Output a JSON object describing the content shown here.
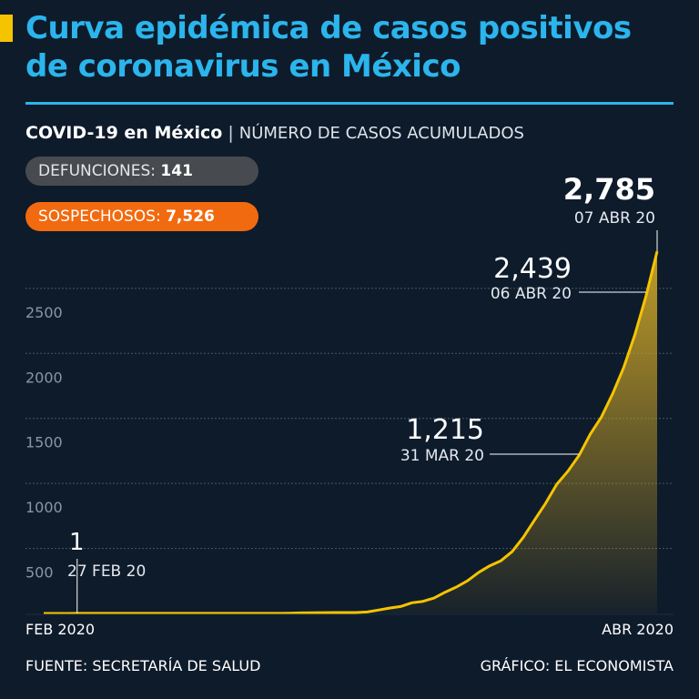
{
  "title": "Curva epidémica de casos positivos de coronavirus en México",
  "subtitle": {
    "strong": "COVID-19 en México",
    "separator": "|",
    "light": "NÚMERO DE CASOS ACUMULADOS"
  },
  "pills": {
    "defunciones_label": "DEFUNCIONES:",
    "defunciones_value": "141",
    "sospechosos_label": "SOSPECHOSOS:",
    "sospechosos_value": "7,526"
  },
  "footer": {
    "source": "FUENTE: SECRETARÍA DE SALUD",
    "credit": "GRÁFICO: EL ECONOMISTA"
  },
  "colors": {
    "background": "#0e1b2b",
    "title": "#2bb5ec",
    "line": "#f5c400",
    "grid": "#4a5666",
    "pill_defunciones": "#474b50",
    "pill_sospechosos": "#f26a0f"
  },
  "chart_data": {
    "type": "area",
    "title": "Curva epidémica de casos positivos de coronavirus en México",
    "ylabel": "NÚMERO DE CASOS ACUMULADOS",
    "xlabel": "",
    "ylim": [
      0,
      2800
    ],
    "yticks": [
      500,
      1000,
      1500,
      2000,
      2500
    ],
    "xtick_labels": [
      "FEB 2020",
      "ABR 2020"
    ],
    "grid": true,
    "series": [
      {
        "name": "Casos acumulados",
        "values": [
          0,
          0,
          0,
          1,
          1,
          1,
          1,
          1,
          1,
          1,
          1,
          1,
          1,
          1,
          1,
          1,
          1,
          1,
          1,
          1,
          1,
          1,
          2,
          4,
          5,
          6,
          7,
          7,
          7,
          11,
          26,
          41,
          53,
          82,
          93,
          118,
          164,
          203,
          251,
          316,
          367,
          405,
          475,
          585,
          717,
          848,
          993,
          1094,
          1215,
          1378,
          1510,
          1688,
          1890,
          2143,
          2439,
          2785
        ]
      }
    ],
    "annotations": [
      {
        "index": 3,
        "value_label": "1",
        "date_label": "27 FEB 20"
      },
      {
        "index": 48,
        "value_label": "1,215",
        "date_label": "31 MAR 20"
      },
      {
        "index": 54,
        "value_label": "2,439",
        "date_label": "06 ABR 20"
      },
      {
        "index": 55,
        "value_label": "2,785",
        "date_label": "07 ABR 20"
      }
    ]
  }
}
